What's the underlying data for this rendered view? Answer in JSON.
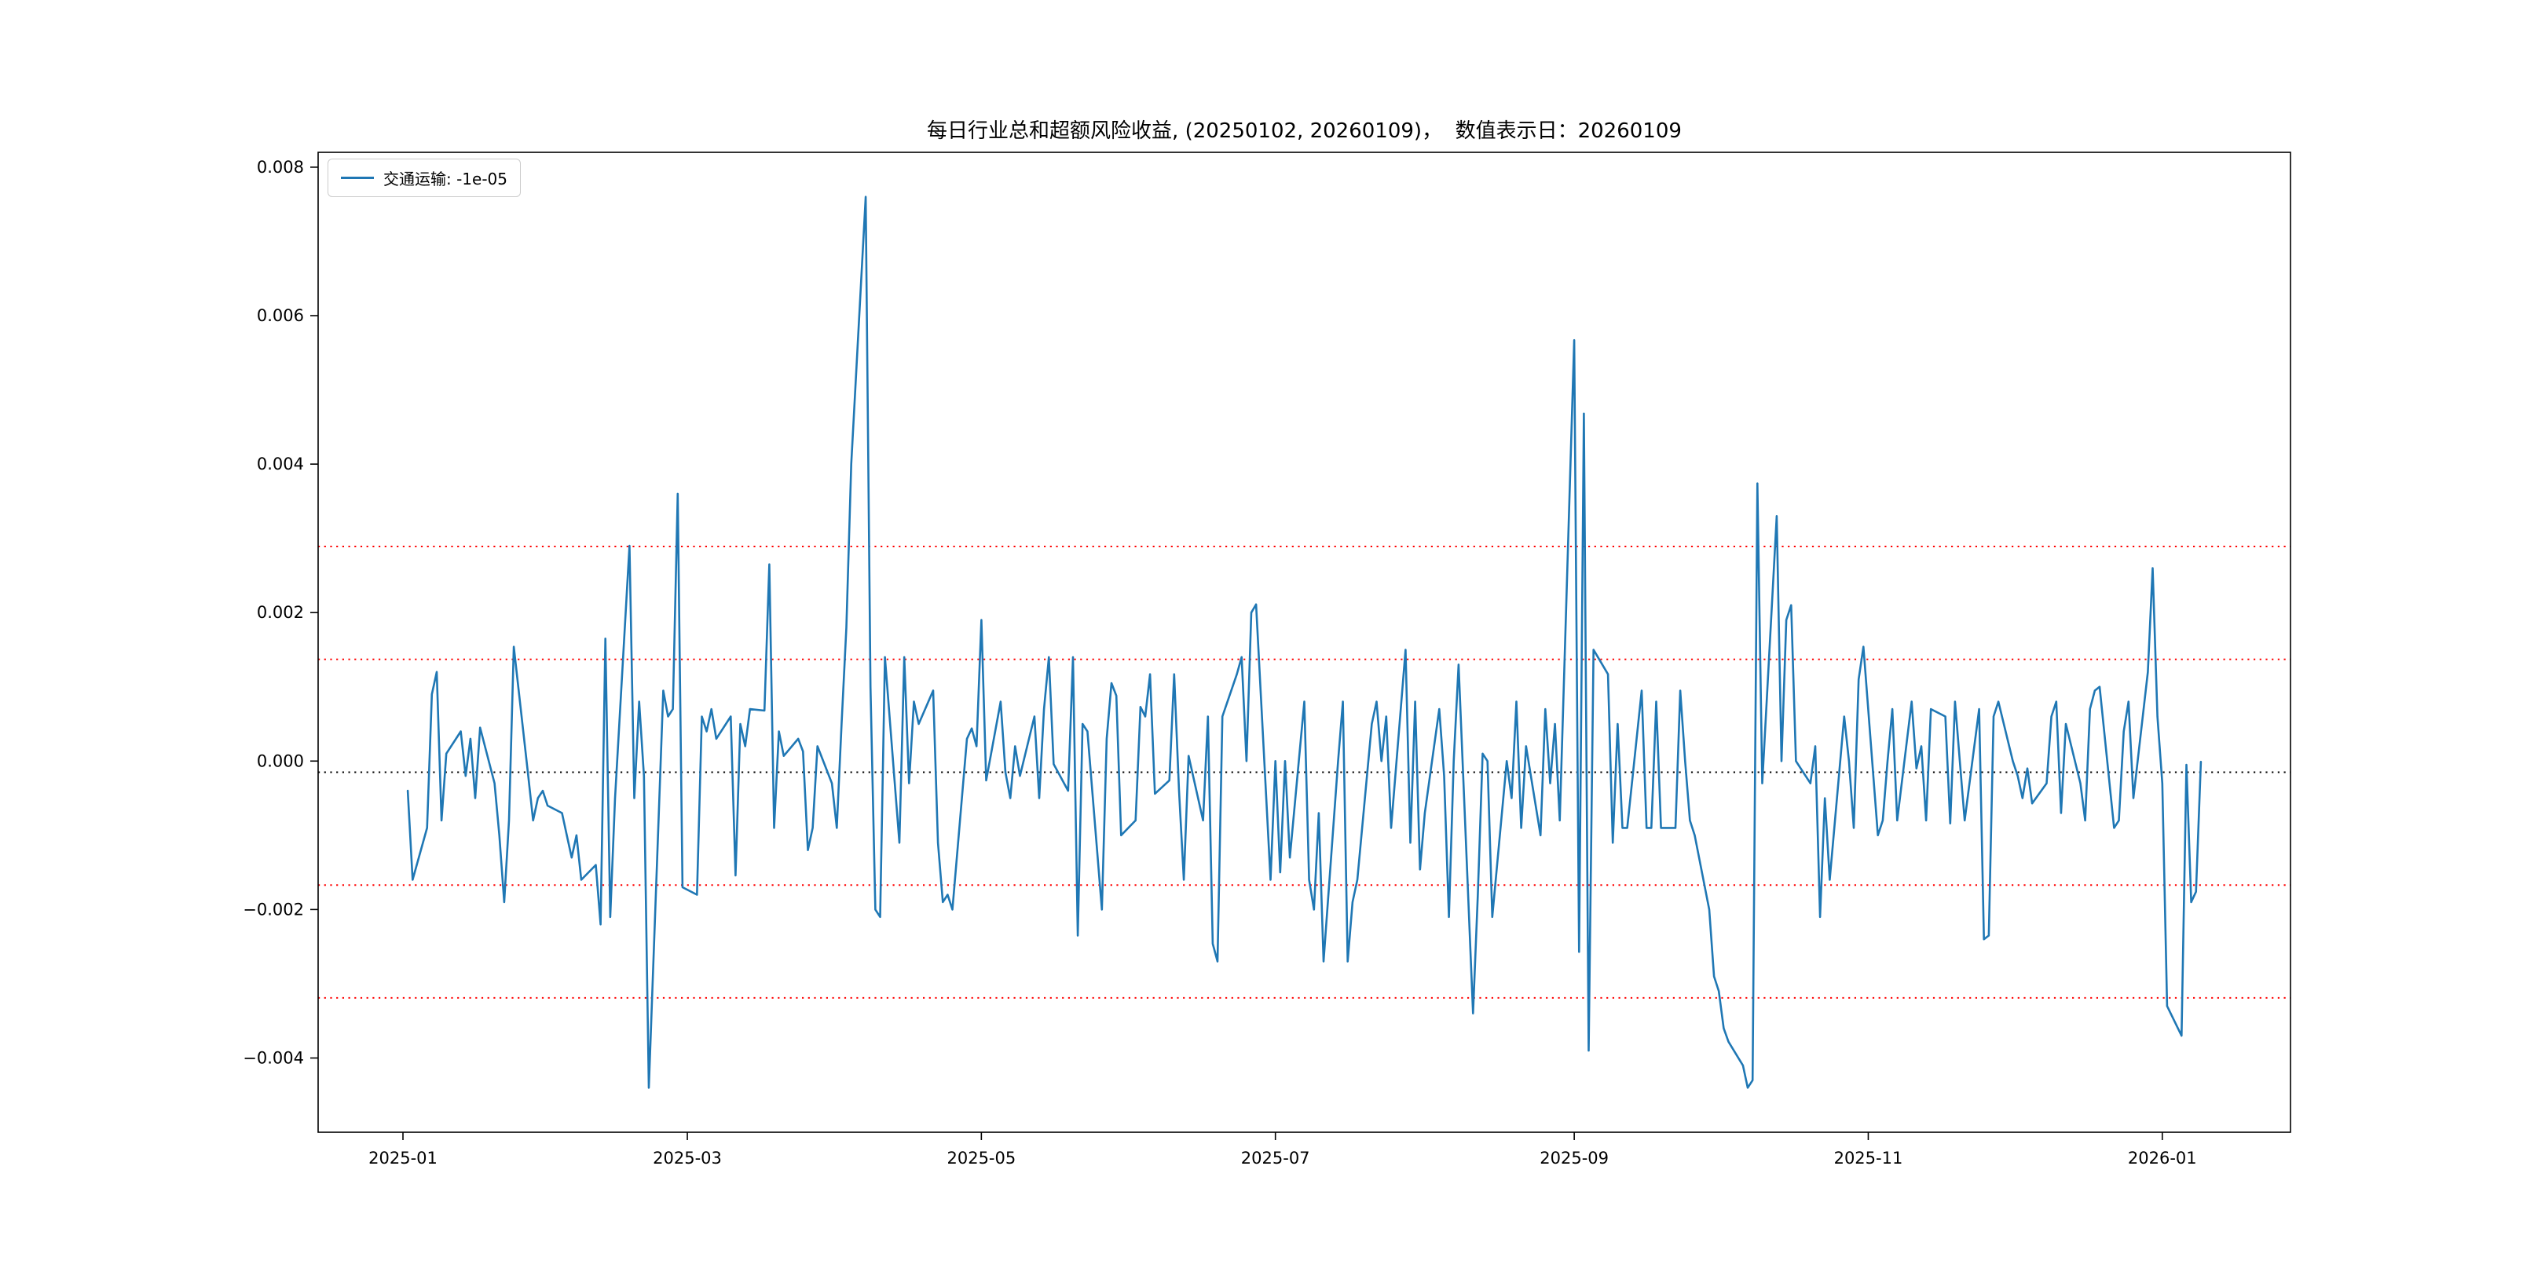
{
  "figure": {
    "background": "#ffffff",
    "frame_color": "#000000"
  },
  "legend": {
    "label": "交通运输: -1e-05"
  },
  "chart_data": {
    "type": "line",
    "title": "每日行业总和超额风险收益, (20250102, 20260109)，  数值表示日：20260109",
    "value_date": "20260109",
    "date_range": [
      "20250102",
      "20260109"
    ],
    "grid": false,
    "legend_position": "upper-left",
    "xlabel": "",
    "ylabel": "",
    "y_ticks": [
      0.008,
      0.006,
      0.004,
      0.002,
      0.0,
      -0.002,
      -0.004
    ],
    "ylim": [
      -0.005,
      0.0082
    ],
    "xlim_days": [
      -17.6,
      391.6
    ],
    "x_ticks": {
      "labels": [
        "2025-01",
        "2025-03",
        "2025-05",
        "2025-07",
        "2025-09",
        "2025-11",
        "2026-01"
      ],
      "day_offsets": [
        0,
        59,
        120,
        181,
        243,
        304,
        365
      ]
    },
    "reference_lines": [
      {
        "name": "mean",
        "value": -0.00015,
        "color": "#000000",
        "style": "dotted"
      },
      {
        "name": "plus-2sigma",
        "value": 0.00289,
        "color": "#ff0000",
        "style": "dotted"
      },
      {
        "name": "plus-1sigma",
        "value": 0.00137,
        "color": "#ff0000",
        "style": "dotted"
      },
      {
        "name": "minus-1sigma",
        "value": -0.00167,
        "color": "#ff0000",
        "style": "dotted"
      },
      {
        "name": "minus-2sigma",
        "value": -0.00319,
        "color": "#ff0000",
        "style": "dotted"
      }
    ],
    "series": [
      {
        "name": "交通运输",
        "last_value": -1e-05,
        "color": "#1f77b4",
        "start_date": "2025-01-02",
        "frequency": "trading-days",
        "values": [
          -0.0004,
          -0.0016,
          -0.0009,
          0.0009,
          0.0012,
          -0.0008,
          0.0001,
          0.0004,
          -0.0002,
          0.0003,
          -0.0005,
          0.00045,
          -0.0003,
          -0.001,
          -0.0019,
          -0.0008,
          0.00154,
          -0.0002,
          -0.0008,
          -0.0005,
          -0.0004,
          -0.0006,
          -0.0007,
          -0.001,
          -0.0013,
          -0.001,
          -0.0016,
          -0.0014,
          -0.0022,
          0.00165,
          -0.0021,
          -0.0005,
          0.0029,
          -0.0005,
          0.0008,
          -0.0002,
          -0.0044,
          0.00095,
          0.0006,
          0.0007,
          0.0036,
          -0.0017,
          -0.0018,
          0.0006,
          0.0004,
          0.0007,
          0.0003,
          0.0006,
          -0.00154,
          0.0005,
          0.0002,
          0.0007,
          0.00068,
          0.00265,
          -0.0009,
          0.0004,
          7e-05,
          0.0003,
          0.00013,
          -0.0012,
          -0.0009,
          0.0002,
          -0.0003,
          -0.0009,
          0.0005,
          0.0018,
          0.004,
          0.0076,
          0.001,
          -0.002,
          -0.0021,
          0.0014,
          -0.0011,
          0.0014,
          -0.0003,
          0.0008,
          0.0005,
          0.00095,
          -0.0011,
          -0.0019,
          -0.0018,
          -0.002,
          0.0003,
          0.00044,
          0.0002,
          0.0019,
          -0.00026,
          0.0008,
          -0.00015,
          -0.0005,
          0.0002,
          -0.0002,
          0.0006,
          -0.0005,
          0.0007,
          0.0014,
          -4e-05,
          -0.0004,
          0.0014,
          -0.00235,
          0.0005,
          0.0004,
          -0.002,
          0.0003,
          0.00105,
          0.00088,
          -0.001,
          -0.0008,
          0.00073,
          0.0006,
          0.00117,
          -0.00044,
          -0.00026,
          0.00117,
          -0.0004,
          -0.0016,
          7e-05,
          -0.0008,
          0.0006,
          -0.00246,
          -0.0027,
          0.0006,
          0.00117,
          0.0014,
          0,
          0.002,
          0.00211,
          -0.0016,
          0,
          -0.0015,
          0,
          -0.0013,
          0.0008,
          -0.0016,
          -0.002,
          -0.0007,
          -0.0027,
          0,
          0.0008,
          -0.0027,
          -0.0019,
          -0.0016,
          0.0005,
          0.0008,
          0,
          0.0006,
          -0.0009,
          0.0015,
          -0.0011,
          0.0008,
          -0.00146,
          -0.0007,
          0.0007,
          -0.0002,
          -0.0021,
          0,
          0.0013,
          -0.0034,
          -0.0018,
          0.0001,
          0,
          -0.0021,
          0,
          -0.0005,
          0.0008,
          -0.0009,
          0.0002,
          -0.001,
          0.0007,
          -0.0003,
          0.0005,
          -0.0008,
          0.00567,
          -0.00257,
          0.00468,
          -0.0039,
          0.0015,
          0.00117,
          -0.0011,
          0.0005,
          -0.0009,
          -0.0009,
          0.00095,
          -0.0009,
          -0.0009,
          0.0008,
          -0.0009,
          -0.0009,
          0.00095,
          0,
          -0.0008,
          -0.001,
          -0.002,
          -0.0029,
          -0.0031,
          -0.0036,
          -0.00378,
          -0.0041,
          -0.0044,
          -0.0043,
          0.00374,
          -0.0003,
          0.0033,
          0,
          0.0019,
          0.0021,
          0,
          -0.0003,
          0.0002,
          -0.0021,
          -0.0005,
          -0.0016,
          0.0006,
          0,
          -0.0009,
          0.0011,
          0.00154,
          -0.001,
          -0.0008,
          0,
          0.0007,
          -0.0008,
          0.0008,
          -0.0001,
          0.0002,
          -0.0008,
          0.0007,
          0.0006,
          -0.00084,
          0.0008,
          0,
          -0.0008,
          0.0007,
          -0.0024,
          -0.00235,
          0.0006,
          0.0008,
          0,
          -0.0002,
          -0.0005,
          -0.0001,
          -0.00057,
          -0.0003,
          0.0006,
          0.0008,
          -0.0007,
          0.0005,
          -0.0003,
          -0.0008,
          0.0007,
          0.00095,
          0.001,
          -0.0009,
          -0.0008,
          0.0004,
          0.0008,
          -0.0005,
          0.0012,
          0.0026,
          0.0006,
          -0.0003,
          -0.0033,
          -0.0037,
          -5e-05,
          -0.0019,
          -0.00176,
          -1e-05
        ]
      }
    ]
  }
}
